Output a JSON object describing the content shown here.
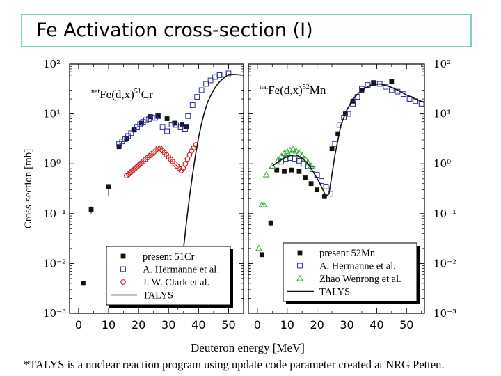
{
  "slide": {
    "title": "Fe  Activation cross-section (I)",
    "footnote": "*TALYS is a nuclear reaction program using update code parameter created at NRG Petten."
  },
  "shared_axes": {
    "xlabel": "Deuteron energy [MeV]",
    "ylabel": "Cross-section [mb]",
    "y_scale": "log",
    "ylim": [
      0.001,
      100
    ],
    "y_tick_labels": [
      "10²",
      "10¹",
      "10⁰",
      "10⁻¹",
      "10⁻²",
      "10⁻³"
    ],
    "x_tick_labels": [
      "0",
      "10",
      "20",
      "30",
      "40",
      "50"
    ]
  },
  "chart_data": [
    {
      "type": "scatter",
      "panel": "left",
      "annotation": {
        "prefix": "nat",
        "body": "Fe(d,x)",
        "mass": "51",
        "element": "Cr"
      },
      "xlim": [
        -3,
        55
      ],
      "ylim": [
        0.001,
        100
      ],
      "y_scale": "log",
      "legend_placement": "bottom-center",
      "series": [
        {
          "name": "present 51Cr",
          "marker": "filled-square",
          "color": "#111111",
          "x": [
            1.5,
            4.2,
            10.0,
            13.5,
            16.0,
            18.5,
            21.0,
            24.0,
            26.5,
            29.5,
            32.0,
            34.5,
            36.0
          ],
          "y": [
            0.004,
            0.12,
            0.35,
            2.2,
            3.2,
            4.8,
            6.5,
            8.8,
            9.0,
            8.0,
            6.5,
            6.2,
            5.6
          ],
          "y_err_low": [
            0.0,
            0.02,
            0.13,
            0.0,
            0.0,
            0.0,
            0.0,
            0.0,
            0.0,
            0.0,
            0.0,
            0.0,
            0.0
          ],
          "y_err_high": [
            0.0,
            0.02,
            0.0,
            0.0,
            0.0,
            0.0,
            0.0,
            0.0,
            0.0,
            0.0,
            0.0,
            0.0,
            0.0
          ]
        },
        {
          "name": "A. Hermanne et al.",
          "marker": "open-square",
          "color": "#2a2a9a",
          "x": [
            13.5,
            14.5,
            15.5,
            16.5,
            17.5,
            18.5,
            19.5,
            20.5,
            21.5,
            22.5,
            23.5,
            24.5,
            25.5,
            26.5,
            28.0,
            29.5,
            31.0,
            32.5,
            34.0,
            35.5,
            36.5,
            38.0,
            39.5,
            41.0,
            42.5,
            44.0,
            45.5,
            47.0,
            48.5,
            50.0
          ],
          "y": [
            2.5,
            2.8,
            3.1,
            3.6,
            4.1,
            4.8,
            5.5,
            6.2,
            6.9,
            7.5,
            7.9,
            8.4,
            8.3,
            9.0,
            5.5,
            4.5,
            6.1,
            6.0,
            5.5,
            5.0,
            9.0,
            15.0,
            22.0,
            30.0,
            40.0,
            47.0,
            55.0,
            60.0,
            62.0,
            65.0
          ]
        },
        {
          "name": "J. W. Clark et al.",
          "marker": "open-circle",
          "color": "#cc2222",
          "x": [
            16.0,
            16.7,
            17.4,
            18.1,
            18.8,
            19.5,
            20.2,
            20.9,
            21.6,
            22.3,
            23.0,
            23.7,
            24.4,
            25.1,
            25.8,
            26.5,
            27.2,
            27.9,
            28.6,
            29.3,
            30.0,
            30.7,
            31.4,
            32.1,
            32.8,
            33.5,
            34.2,
            34.9,
            35.6,
            36.3,
            37.0,
            37.7,
            38.4,
            39.1
          ],
          "y": [
            0.58,
            0.62,
            0.68,
            0.74,
            0.8,
            0.87,
            0.95,
            1.03,
            1.12,
            1.22,
            1.33,
            1.45,
            1.58,
            1.72,
            1.88,
            2.05,
            2.05,
            1.85,
            1.67,
            1.51,
            1.36,
            1.23,
            1.11,
            1.0,
            0.9,
            0.81,
            0.73,
            0.82,
            1.0,
            1.25,
            1.5,
            1.8,
            2.1,
            2.4
          ]
        },
        {
          "name": "TALYS",
          "marker": "line",
          "color": "#111111",
          "x": [
            33.0,
            34.0,
            35.0,
            36.0,
            37.0,
            38.0,
            39.0,
            40.0,
            41.0,
            42.0,
            43.0,
            44.0,
            45.0,
            46.0,
            47.0,
            48.0,
            49.0,
            50.0,
            52.0,
            55.0
          ],
          "y": [
            0.0012,
            0.005,
            0.02,
            0.07,
            0.22,
            0.6,
            1.5,
            3.3,
            6.5,
            11.0,
            17.0,
            23.0,
            30.0,
            37.0,
            44.0,
            50.0,
            56.0,
            62.0,
            62.0,
            60.0
          ]
        }
      ]
    },
    {
      "type": "scatter",
      "panel": "right",
      "annotation": {
        "prefix": "nat",
        "body": "Fe(d,x)",
        "mass": "52",
        "element": "Mn"
      },
      "xlim": [
        -3,
        56
      ],
      "ylim": [
        0.001,
        100
      ],
      "y_scale": "log",
      "legend_placement": "bottom-right",
      "series": [
        {
          "name": "present 52Mn",
          "marker": "filled-square",
          "color": "#111111",
          "x": [
            1.5,
            4.5,
            6.5,
            9.0,
            11.5,
            14.0,
            16.0,
            18.0,
            20.0,
            22.5,
            25.0,
            27.0,
            29.5,
            32.0,
            35.0,
            39.0,
            45.0
          ],
          "y": [
            0.015,
            0.065,
            0.75,
            0.7,
            0.75,
            0.7,
            0.52,
            0.4,
            0.3,
            0.22,
            2.0,
            4.0,
            10.0,
            18.0,
            30.0,
            40.0,
            45.0
          ],
          "y_err_low": [
            0.0,
            0.01,
            0.0,
            0.0,
            0.0,
            0.0,
            0.0,
            0.0,
            0.0,
            0.02,
            0.0,
            0.0,
            0.0,
            0.0,
            0.0,
            0.0,
            0.0
          ],
          "y_err_high": [
            0.0,
            0.01,
            0.0,
            0.0,
            0.0,
            0.0,
            0.0,
            0.0,
            0.0,
            0.02,
            0.0,
            0.0,
            0.0,
            0.0,
            0.0,
            0.0,
            0.0
          ]
        },
        {
          "name": "A. Hermanne et al.",
          "marker": "open-square",
          "color": "#2a2a9a",
          "x": [
            8.0,
            9.5,
            11.0,
            12.5,
            14.0,
            15.5,
            17.0,
            18.5,
            20.0,
            21.5,
            23.0,
            24.5,
            26.0,
            27.5,
            29.0,
            30.5,
            32.0,
            33.5,
            35.0,
            37.0,
            39.0,
            41.0,
            43.0,
            45.0,
            47.0,
            49.0,
            51.0,
            53.0,
            55.0
          ],
          "y": [
            1.1,
            1.25,
            1.3,
            1.25,
            1.15,
            1.0,
            0.9,
            0.78,
            0.6,
            0.45,
            0.35,
            0.25,
            2.5,
            6.0,
            8.5,
            10.0,
            16.0,
            22.0,
            32.0,
            38.0,
            42.0,
            40.0,
            35.0,
            30.0,
            28.0,
            25.0,
            20.0,
            18.0,
            16.0
          ]
        },
        {
          "name": "Zhao Wenrong et al.",
          "marker": "open-triangle",
          "color": "#33aa33",
          "x": [
            0.5,
            1.5,
            2.2,
            3.0,
            5.0,
            7.0,
            8.0,
            9.0,
            10.0,
            11.0,
            12.0,
            13.0,
            14.0,
            15.0,
            16.0,
            17.0,
            18.0
          ],
          "y": [
            0.02,
            0.15,
            0.15,
            0.6,
            0.9,
            1.2,
            1.4,
            1.6,
            1.75,
            1.85,
            1.95,
            1.8,
            1.65,
            1.45,
            1.25,
            1.05,
            0.9
          ]
        },
        {
          "name": "TALYS",
          "marker": "line",
          "color": "#111111",
          "x": [
            5.0,
            7.0,
            9.0,
            11.0,
            13.0,
            15.0,
            17.0,
            19.0,
            21.0,
            23.0,
            24.0,
            26.0,
            28.0,
            30.0,
            32.0,
            35.0,
            38.0,
            41.0,
            44.0,
            47.0,
            50.0,
            53.0,
            56.0
          ],
          "y": [
            0.9,
            1.1,
            1.3,
            1.45,
            1.5,
            1.3,
            1.0,
            0.65,
            0.4,
            0.22,
            0.25,
            1.5,
            6.0,
            12.0,
            20.0,
            30.0,
            38.0,
            40.0,
            36.0,
            30.0,
            24.0,
            20.0,
            17.0
          ]
        }
      ]
    }
  ]
}
